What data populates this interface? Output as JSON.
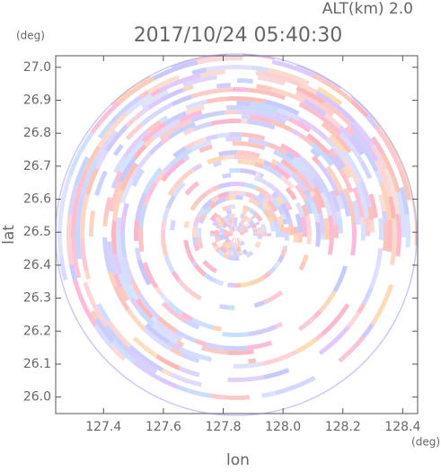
{
  "chart_data": {
    "type": "radar-ppi",
    "title": "2017/10/24 05:40:30",
    "annotation": "ALT(km) 2.0",
    "x_label": "lon",
    "y_label": "lat",
    "x_unit": "(deg)",
    "y_unit": "(deg)",
    "xlim": [
      127.24,
      128.45
    ],
    "xticks": [
      127.4,
      127.6,
      127.8,
      {
        "value": 128,
        "label": "128.0"
      },
      128.2,
      128.4
    ],
    "ylim": [
      25.95,
      27.035
    ],
    "yticks": [
      {
        "value": 26,
        "label": "26.0"
      },
      26.1,
      26.2,
      26.3,
      26.4,
      26.5,
      26.6,
      26.7,
      26.8,
      26.9,
      {
        "value": 27,
        "label": "27.0"
      }
    ]
  }
}
